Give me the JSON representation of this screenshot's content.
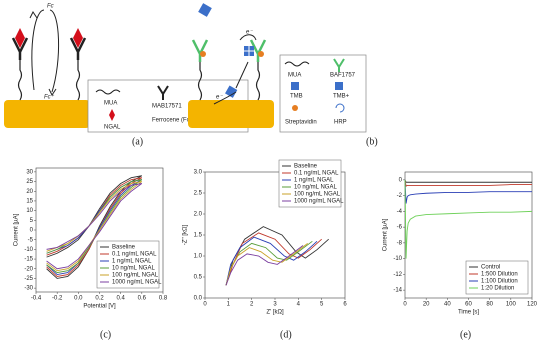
{
  "diagrams": {
    "a": {
      "label": "(a)",
      "top_label": "Fc",
      "bottom_label": "Fc⁺",
      "legend": {
        "mua": "MUA",
        "antibody": "MAB17571",
        "ngal": "NGAL",
        "ferrocene": "Ferrocene (Fc)"
      }
    },
    "b": {
      "label": "(b)",
      "electron_top": "e⁻",
      "electron_bottom": "e⁻",
      "legend": {
        "mua": "MUA",
        "antibody": "BAF1757",
        "tmb": "TMB",
        "tmb_plus": "TMB+",
        "streptavidin": "Streptavidin",
        "hrp": "HRP"
      }
    }
  },
  "chart_data": [
    {
      "type": "line",
      "panel_label": "(c)",
      "x_label": "Potential [V]",
      "y_label": "Current [µA]",
      "x": [
        -0.3,
        -0.2,
        -0.1,
        0,
        0.1,
        0.2,
        0.3,
        0.4,
        0.5,
        0.6,
        0.5,
        0.4,
        0.3,
        0.2,
        0.1,
        0,
        -0.1,
        -0.2,
        -0.3
      ],
      "xlim": [
        -0.4,
        0.8
      ],
      "xticks": [
        -0.4,
        -0.2,
        {
          "value": 0,
          "label": "0.0"
        },
        0.2,
        0.4,
        0.6,
        0.8
      ],
      "ylim": [
        -32,
        32
      ],
      "yticks": [
        -30,
        -25,
        -20,
        -15,
        -10,
        -5,
        0,
        5,
        10,
        15,
        20,
        25,
        30
      ],
      "legend": "lower right",
      "series": [
        {
          "name": "Baseline",
          "color": "#333333",
          "values": [
            -14,
            -12,
            -9,
            -5,
            2,
            11,
            19,
            24,
            27,
            28,
            25,
            20,
            12,
            2,
            -10,
            -19,
            -24,
            -25,
            -20
          ]
        },
        {
          "name": "0.1 ng/mL NGAL",
          "color": "#c0392b",
          "values": [
            -13,
            -11,
            -8,
            -4,
            2,
            10,
            18,
            23,
            26,
            27,
            24,
            19,
            11,
            1,
            -10,
            -18,
            -23,
            -24,
            -19
          ]
        },
        {
          "name": "1 ng/mL NGAL",
          "color": "#2a3fb5",
          "values": [
            -12,
            -10,
            -8,
            -4,
            2,
            10,
            17,
            22,
            25,
            26,
            23,
            18,
            10,
            1,
            -9,
            -17,
            -22,
            -23,
            -18
          ]
        },
        {
          "name": "10 ng/mL NGAL",
          "color": "#5a9e3a",
          "values": [
            -12,
            -10,
            -7,
            -3,
            2,
            9,
            17,
            22,
            25,
            26,
            22,
            17,
            9,
            0,
            -9,
            -17,
            -21,
            -22,
            -18
          ]
        },
        {
          "name": "100 ng/mL NGAL",
          "color": "#c9a227",
          "values": [
            -11,
            -9,
            -7,
            -3,
            2,
            9,
            16,
            21,
            24,
            25,
            21,
            16,
            8,
            0,
            -8,
            -16,
            -20,
            -21,
            -17
          ]
        },
        {
          "name": "1000 ng/mL NGAL",
          "color": "#7b3fa0",
          "values": [
            -10,
            -9,
            -6,
            -3,
            2,
            8,
            15,
            20,
            23,
            24,
            20,
            15,
            7,
            -1,
            -8,
            -15,
            -19,
            -20,
            -16
          ]
        }
      ]
    },
    {
      "type": "line",
      "panel_label": "(d)",
      "x_label": "Z' [kΩ]",
      "y_label": "-Z'' [kΩ]",
      "xlim": [
        0,
        6
      ],
      "xticks": [
        0,
        1,
        2,
        3,
        4,
        5,
        6
      ],
      "ylim": [
        0,
        3
      ],
      "yticks": [
        {
          "value": 0,
          "label": "0.0"
        },
        0.5,
        {
          "value": 1,
          "label": "1.0"
        },
        1.5,
        {
          "value": 2,
          "label": "2.0"
        },
        2.5,
        {
          "value": 3,
          "label": "3.0"
        }
      ],
      "legend": "upper right",
      "series": [
        {
          "name": "Baseline",
          "color": "#333333",
          "x": [
            0.9,
            1.2,
            1.7,
            2.5,
            3.3,
            3.9,
            4.3,
            4.8,
            5.3
          ],
          "values": [
            0.3,
            0.9,
            1.4,
            1.7,
            1.5,
            1.1,
            0.95,
            1.15,
            1.4
          ]
        },
        {
          "name": "0.1 ng/mL NGAL",
          "color": "#c0392b",
          "x": [
            0.9,
            1.2,
            1.6,
            2.3,
            3.0,
            3.6,
            4.0,
            4.5,
            5.0
          ],
          "values": [
            0.3,
            0.8,
            1.3,
            1.55,
            1.4,
            1.05,
            0.95,
            1.15,
            1.4
          ]
        },
        {
          "name": "1 ng/mL NGAL",
          "color": "#2a3fb5",
          "x": [
            0.9,
            1.1,
            1.5,
            2.1,
            2.8,
            3.4,
            3.8,
            4.3,
            4.8
          ],
          "values": [
            0.3,
            0.8,
            1.2,
            1.45,
            1.3,
            1.0,
            0.9,
            1.1,
            1.35
          ]
        },
        {
          "name": "10 ng/mL NGAL",
          "color": "#5a9e3a",
          "x": [
            0.9,
            1.1,
            1.5,
            2.0,
            2.6,
            3.1,
            3.5,
            4.0,
            4.6
          ],
          "values": [
            0.3,
            0.7,
            1.1,
            1.3,
            1.2,
            0.95,
            0.9,
            1.1,
            1.35
          ]
        },
        {
          "name": "100 ng/mL NGAL",
          "color": "#c9a227",
          "x": [
            0.9,
            1.1,
            1.4,
            1.9,
            2.4,
            2.9,
            3.3,
            3.8,
            4.4
          ],
          "values": [
            0.3,
            0.7,
            1.0,
            1.2,
            1.1,
            0.9,
            0.85,
            1.05,
            1.3
          ]
        },
        {
          "name": "1000 ng/mL NGAL",
          "color": "#7b3fa0",
          "x": [
            0.9,
            1.1,
            1.4,
            1.8,
            2.3,
            2.7,
            3.1,
            3.6,
            4.2
          ],
          "values": [
            0.3,
            0.6,
            0.9,
            1.05,
            1.0,
            0.85,
            0.8,
            1.0,
            1.25
          ]
        }
      ]
    },
    {
      "type": "line",
      "panel_label": "(e)",
      "x_label": "Time [s]",
      "y_label": "Current [µA]",
      "x": [
        0,
        1,
        2,
        3,
        5,
        10,
        20,
        40,
        60,
        80,
        100,
        120
      ],
      "xlim": [
        0,
        120
      ],
      "xticks": [
        0,
        20,
        40,
        60,
        80,
        100,
        120
      ],
      "ylim": [
        -15,
        1
      ],
      "yticks": [
        0,
        -2,
        -4,
        -6,
        -8,
        -10,
        -12,
        -14
      ],
      "legend": "lower right",
      "series": [
        {
          "name": "Control",
          "color": "#333333",
          "values": [
            0,
            -0.3,
            -0.3,
            -0.3,
            -0.3,
            -0.3,
            -0.3,
            -0.3,
            -0.3,
            -0.3,
            -0.3,
            -0.3
          ]
        },
        {
          "name": "1:500 Dilution",
          "color": "#c0392b",
          "values": [
            0,
            -0.8,
            -0.7,
            -0.7,
            -0.7,
            -0.7,
            -0.7,
            -0.7,
            -0.7,
            -0.7,
            -0.6,
            -0.6
          ]
        },
        {
          "name": "1:100 Dilution",
          "color": "#2a3fb5",
          "values": [
            0,
            -3,
            -2.2,
            -2,
            -1.9,
            -1.8,
            -1.7,
            -1.6,
            -1.6,
            -1.5,
            -1.5,
            -1.5
          ]
        },
        {
          "name": "1:20 Dilution",
          "color": "#6fd15a",
          "values": [
            0,
            -10,
            -6.5,
            -5.5,
            -5,
            -4.6,
            -4.4,
            -4.3,
            -4.2,
            -4.1,
            -4.1,
            -4.0
          ]
        }
      ]
    }
  ]
}
